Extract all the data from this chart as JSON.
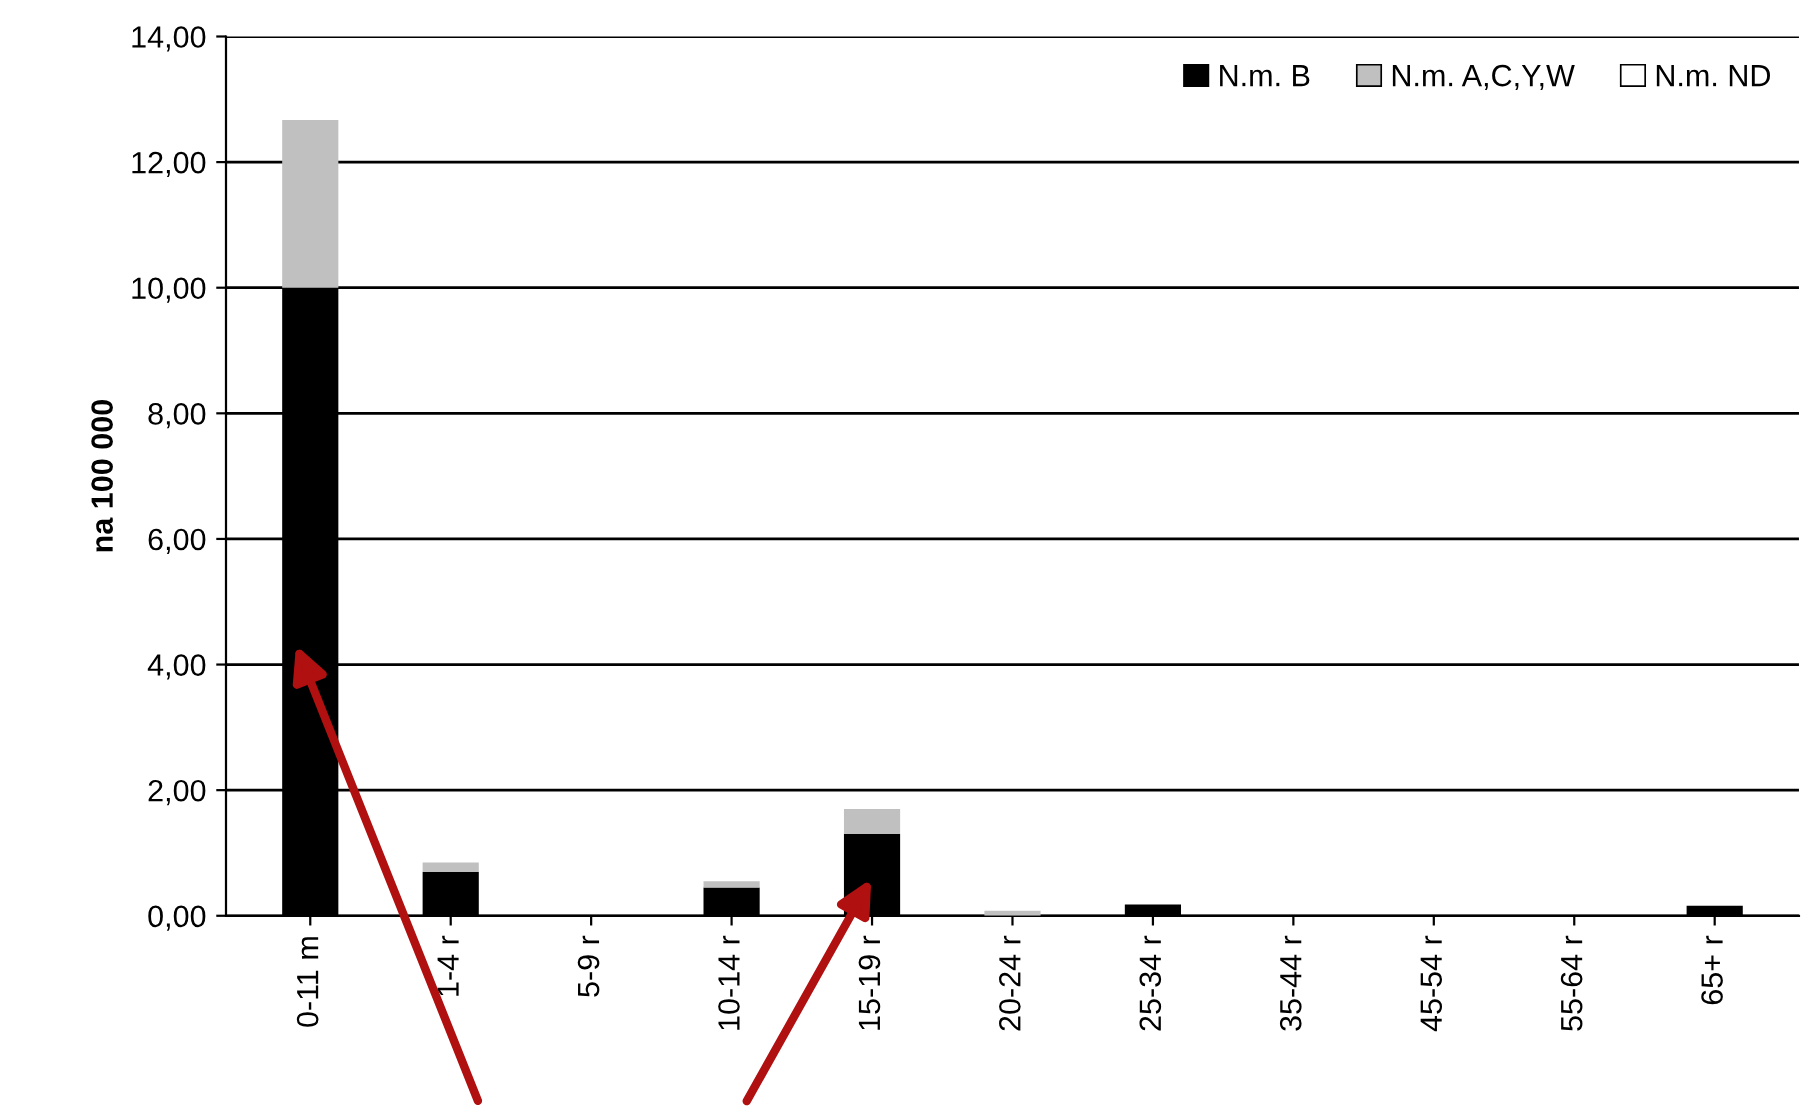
{
  "chart_data": {
    "type": "bar",
    "stacked": true,
    "ylabel": "na 100 000",
    "categories": [
      "0-11 m",
      "1-4 r",
      "5-9 r",
      "10-14 r",
      "15-19 r",
      "20-24 r",
      "25-34 r",
      "35-44 r",
      "45-54 r",
      "55-64 r",
      "65+ r"
    ],
    "series": [
      {
        "name": "N.m. B",
        "color": "#000000",
        "values": [
          10.0,
          0.7,
          0.0,
          0.45,
          1.3,
          null,
          0.18,
          null,
          null,
          null,
          0.16
        ]
      },
      {
        "name": "N.m. A,C,Y,W",
        "color": "#c0c0c0",
        "values": [
          2.67,
          0.15,
          null,
          0.1,
          0.4,
          0.08,
          0.0,
          0.0,
          0.0,
          0.0,
          0.0
        ]
      },
      {
        "name": "N.m. ND",
        "color": "#ffffff",
        "values": [
          0,
          0,
          0,
          0,
          0,
          0,
          0,
          0,
          0,
          0,
          0
        ]
      }
    ],
    "ylim": [
      0,
      14
    ],
    "yticks": [
      {
        "value": 0,
        "label": "0,00"
      },
      {
        "value": 2,
        "label": "2,00"
      },
      {
        "value": 4,
        "label": "4,00"
      },
      {
        "value": 6,
        "label": "6,00"
      },
      {
        "value": 8,
        "label": "8,00"
      },
      {
        "value": 10,
        "label": "10,00"
      },
      {
        "value": 12,
        "label": "12,00"
      },
      {
        "value": 14,
        "label": "14,00"
      }
    ],
    "grid": "y",
    "legend": "top right"
  }
}
